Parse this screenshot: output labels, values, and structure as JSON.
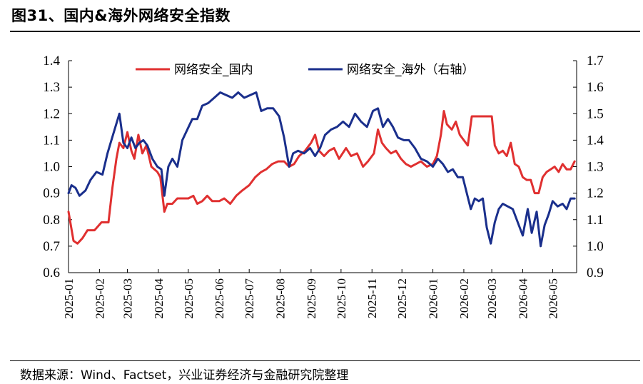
{
  "header": {
    "title": "图31、国内&海外网络安全指数"
  },
  "footer": {
    "source": "数据来源：Wind、Factset，兴业证券经济与金融研究院整理"
  },
  "colors": {
    "domestic": "#E03030",
    "overseas": "#1A2F8C"
  },
  "chart_data": {
    "type": "line",
    "title": "",
    "grid": false,
    "legend_position": "top",
    "x_tick_labels": [
      "2025-01",
      "2025-02",
      "2025-03",
      "2025-04",
      "2025-05",
      "2025-06",
      "2025-07",
      "2025-08",
      "2025-09",
      "2025-10",
      "2025-11",
      "2025-12",
      "2026-01",
      "2026-02",
      "2026-03",
      "2026-04",
      "2026-05"
    ],
    "y_left": {
      "range": [
        0.6,
        1.4
      ],
      "ticks": [
        "0.6",
        "0.7",
        "0.8",
        "0.9",
        "1.0",
        "1.1",
        "1.2",
        "1.3",
        "1.4"
      ]
    },
    "y_right": {
      "range": [
        0.9,
        1.7
      ],
      "ticks": [
        "0.9",
        "1.0",
        "1.1",
        "1.2",
        "1.3",
        "1.4",
        "1.5",
        "1.6",
        "1.7"
      ]
    },
    "series": [
      {
        "name": "网络安全_国内",
        "axis": "left",
        "color": "#E03030",
        "points": [
          [
            "2025-01-01",
            0.83
          ],
          [
            "2025-01-06",
            0.72
          ],
          [
            "2025-01-10",
            0.71
          ],
          [
            "2025-01-15",
            0.73
          ],
          [
            "2025-01-20",
            0.76
          ],
          [
            "2025-01-27",
            0.76
          ],
          [
            "2025-02-03",
            0.79
          ],
          [
            "2025-02-10",
            0.79
          ],
          [
            "2025-02-14",
            0.92
          ],
          [
            "2025-02-18",
            1.03
          ],
          [
            "2025-02-21",
            1.09
          ],
          [
            "2025-02-25",
            1.07
          ],
          [
            "2025-03-01",
            1.13
          ],
          [
            "2025-03-05",
            1.06
          ],
          [
            "2025-03-08",
            1.03
          ],
          [
            "2025-03-12",
            1.12
          ],
          [
            "2025-03-16",
            1.05
          ],
          [
            "2025-03-20",
            1.08
          ],
          [
            "2025-03-25",
            1.0
          ],
          [
            "2025-03-31",
            0.98
          ],
          [
            "2025-04-03",
            0.96
          ],
          [
            "2025-04-07",
            0.83
          ],
          [
            "2025-04-10",
            0.86
          ],
          [
            "2025-04-15",
            0.86
          ],
          [
            "2025-04-20",
            0.88
          ],
          [
            "2025-04-25",
            0.88
          ],
          [
            "2025-05-01",
            0.88
          ],
          [
            "2025-05-06",
            0.89
          ],
          [
            "2025-05-10",
            0.86
          ],
          [
            "2025-05-15",
            0.87
          ],
          [
            "2025-05-20",
            0.89
          ],
          [
            "2025-05-25",
            0.87
          ],
          [
            "2025-06-01",
            0.87
          ],
          [
            "2025-06-06",
            0.88
          ],
          [
            "2025-06-12",
            0.86
          ],
          [
            "2025-06-18",
            0.89
          ],
          [
            "2025-06-24",
            0.91
          ],
          [
            "2025-07-01",
            0.93
          ],
          [
            "2025-07-07",
            0.96
          ],
          [
            "2025-07-13",
            0.98
          ],
          [
            "2025-07-18",
            0.99
          ],
          [
            "2025-07-24",
            1.01
          ],
          [
            "2025-07-30",
            1.02
          ],
          [
            "2025-08-05",
            1.02
          ],
          [
            "2025-08-10",
            1.0
          ],
          [
            "2025-08-15",
            1.01
          ],
          [
            "2025-08-20",
            1.04
          ],
          [
            "2025-08-26",
            1.06
          ],
          [
            "2025-09-01",
            1.09
          ],
          [
            "2025-09-05",
            1.12
          ],
          [
            "2025-09-09",
            1.06
          ],
          [
            "2025-09-14",
            1.04
          ],
          [
            "2025-09-19",
            1.06
          ],
          [
            "2025-09-24",
            1.07
          ],
          [
            "2025-09-29",
            1.03
          ],
          [
            "2025-10-06",
            1.07
          ],
          [
            "2025-10-11",
            1.04
          ],
          [
            "2025-10-17",
            1.05
          ],
          [
            "2025-10-23",
            1.0
          ],
          [
            "2025-10-28",
            1.02
          ],
          [
            "2025-11-03",
            1.05
          ],
          [
            "2025-11-07",
            1.14
          ],
          [
            "2025-11-11",
            1.09
          ],
          [
            "2025-11-15",
            1.07
          ],
          [
            "2025-11-20",
            1.05
          ],
          [
            "2025-11-25",
            1.06
          ],
          [
            "2025-11-30",
            1.03
          ],
          [
            "2025-12-05",
            1.01
          ],
          [
            "2025-12-10",
            1.0
          ],
          [
            "2025-12-15",
            1.01
          ],
          [
            "2025-12-20",
            1.02
          ],
          [
            "2025-12-26",
            1.0
          ],
          [
            "2026-01-01",
            1.01
          ],
          [
            "2026-01-05",
            1.04
          ],
          [
            "2026-01-09",
            1.12
          ],
          [
            "2026-01-12",
            1.21
          ],
          [
            "2026-01-15",
            1.16
          ],
          [
            "2026-01-20",
            1.14
          ],
          [
            "2026-01-24",
            1.17
          ],
          [
            "2026-01-28",
            1.12
          ],
          [
            "2026-02-01",
            1.1
          ],
          [
            "2026-02-05",
            1.08
          ],
          [
            "2026-02-09",
            1.19
          ],
          [
            "2026-02-14",
            1.19
          ],
          [
            "2026-02-19",
            1.19
          ],
          [
            "2026-02-25",
            1.19
          ],
          [
            "2026-03-01",
            1.19
          ],
          [
            "2026-03-04",
            1.08
          ],
          [
            "2026-03-08",
            1.05
          ],
          [
            "2026-03-12",
            1.06
          ],
          [
            "2026-03-16",
            1.04
          ],
          [
            "2026-03-20",
            1.09
          ],
          [
            "2026-03-24",
            1.01
          ],
          [
            "2026-03-28",
            1.0
          ],
          [
            "2026-04-01",
            0.96
          ],
          [
            "2026-04-05",
            0.95
          ],
          [
            "2026-04-09",
            0.95
          ],
          [
            "2026-04-13",
            0.9
          ],
          [
            "2026-04-17",
            0.9
          ],
          [
            "2026-04-21",
            0.96
          ],
          [
            "2026-04-25",
            0.98
          ],
          [
            "2026-04-29",
            0.99
          ],
          [
            "2026-05-03",
            1.0
          ],
          [
            "2026-05-07",
            0.98
          ],
          [
            "2026-05-11",
            1.01
          ],
          [
            "2026-05-15",
            0.99
          ],
          [
            "2026-05-19",
            0.99
          ],
          [
            "2026-05-23",
            1.02
          ]
        ]
      },
      {
        "name": "网络安全_海外（右轴）",
        "axis": "right",
        "color": "#1A2F8C",
        "points": [
          [
            "2025-01-01",
            1.2
          ],
          [
            "2025-01-04",
            1.23
          ],
          [
            "2025-01-08",
            1.22
          ],
          [
            "2025-01-12",
            1.19
          ],
          [
            "2025-01-18",
            1.21
          ],
          [
            "2025-01-23",
            1.25
          ],
          [
            "2025-01-29",
            1.28
          ],
          [
            "2025-02-04",
            1.27
          ],
          [
            "2025-02-09",
            1.35
          ],
          [
            "2025-02-13",
            1.4
          ],
          [
            "2025-02-17",
            1.45
          ],
          [
            "2025-02-21",
            1.5
          ],
          [
            "2025-02-25",
            1.39
          ],
          [
            "2025-03-01",
            1.37
          ],
          [
            "2025-03-05",
            1.41
          ],
          [
            "2025-03-09",
            1.37
          ],
          [
            "2025-03-13",
            1.39
          ],
          [
            "2025-03-17",
            1.4
          ],
          [
            "2025-03-21",
            1.38
          ],
          [
            "2025-03-26",
            1.33
          ],
          [
            "2025-03-31",
            1.3
          ],
          [
            "2025-04-04",
            1.29
          ],
          [
            "2025-04-07",
            1.19
          ],
          [
            "2025-04-11",
            1.3
          ],
          [
            "2025-04-15",
            1.33
          ],
          [
            "2025-04-20",
            1.3
          ],
          [
            "2025-04-25",
            1.4
          ],
          [
            "2025-04-30",
            1.44
          ],
          [
            "2025-05-05",
            1.48
          ],
          [
            "2025-05-10",
            1.48
          ],
          [
            "2025-05-15",
            1.53
          ],
          [
            "2025-05-21",
            1.54
          ],
          [
            "2025-05-27",
            1.56
          ],
          [
            "2025-06-02",
            1.58
          ],
          [
            "2025-06-08",
            1.57
          ],
          [
            "2025-06-14",
            1.56
          ],
          [
            "2025-06-20",
            1.58
          ],
          [
            "2025-06-26",
            1.56
          ],
          [
            "2025-07-02",
            1.57
          ],
          [
            "2025-07-08",
            1.58
          ],
          [
            "2025-07-13",
            1.51
          ],
          [
            "2025-07-19",
            1.52
          ],
          [
            "2025-07-25",
            1.52
          ],
          [
            "2025-07-31",
            1.49
          ],
          [
            "2025-08-05",
            1.41
          ],
          [
            "2025-08-10",
            1.3
          ],
          [
            "2025-08-14",
            1.35
          ],
          [
            "2025-08-19",
            1.36
          ],
          [
            "2025-08-25",
            1.35
          ],
          [
            "2025-08-31",
            1.37
          ],
          [
            "2025-09-05",
            1.34
          ],
          [
            "2025-09-10",
            1.37
          ],
          [
            "2025-09-15",
            1.42
          ],
          [
            "2025-09-21",
            1.44
          ],
          [
            "2025-09-27",
            1.45
          ],
          [
            "2025-10-03",
            1.47
          ],
          [
            "2025-10-09",
            1.45
          ],
          [
            "2025-10-15",
            1.5
          ],
          [
            "2025-10-21",
            1.47
          ],
          [
            "2025-10-27",
            1.45
          ],
          [
            "2025-11-02",
            1.51
          ],
          [
            "2025-11-07",
            1.52
          ],
          [
            "2025-11-12",
            1.45
          ],
          [
            "2025-11-17",
            1.48
          ],
          [
            "2025-11-22",
            1.45
          ],
          [
            "2025-11-27",
            1.41
          ],
          [
            "2025-12-03",
            1.4
          ],
          [
            "2025-12-08",
            1.4
          ],
          [
            "2025-12-14",
            1.37
          ],
          [
            "2025-12-20",
            1.33
          ],
          [
            "2025-12-26",
            1.32
          ],
          [
            "2026-01-01",
            1.3
          ],
          [
            "2026-01-06",
            1.33
          ],
          [
            "2026-01-11",
            1.31
          ],
          [
            "2026-01-16",
            1.28
          ],
          [
            "2026-01-21",
            1.29
          ],
          [
            "2026-01-26",
            1.26
          ],
          [
            "2026-01-31",
            1.26
          ],
          [
            "2026-02-04",
            1.2
          ],
          [
            "2026-02-08",
            1.14
          ],
          [
            "2026-02-12",
            1.18
          ],
          [
            "2026-02-16",
            1.17
          ],
          [
            "2026-02-20",
            1.18
          ],
          [
            "2026-02-24",
            1.07
          ],
          [
            "2026-02-28",
            1.01
          ],
          [
            "2026-03-04",
            1.09
          ],
          [
            "2026-03-08",
            1.14
          ],
          [
            "2026-03-12",
            1.16
          ],
          [
            "2026-03-17",
            1.15
          ],
          [
            "2026-03-22",
            1.14
          ],
          [
            "2026-03-27",
            1.09
          ],
          [
            "2026-04-01",
            1.04
          ],
          [
            "2026-04-06",
            1.14
          ],
          [
            "2026-04-10",
            1.05
          ],
          [
            "2026-04-15",
            1.13
          ],
          [
            "2026-04-19",
            1.0
          ],
          [
            "2026-04-23",
            1.08
          ],
          [
            "2026-04-27",
            1.12
          ],
          [
            "2026-05-01",
            1.17
          ],
          [
            "2026-05-06",
            1.15
          ],
          [
            "2026-05-11",
            1.16
          ],
          [
            "2026-05-15",
            1.14
          ],
          [
            "2026-05-19",
            1.18
          ],
          [
            "2026-05-23",
            1.18
          ]
        ]
      }
    ]
  }
}
